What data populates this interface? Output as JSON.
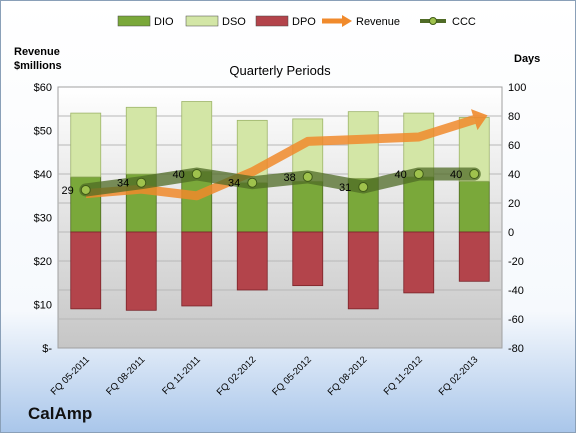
{
  "chart_data": {
    "type": "bar",
    "title": "Quarterly Periods",
    "company": "CalAmp",
    "left_axis_label": [
      "Revenue",
      "$millions"
    ],
    "right_axis_label": "Days",
    "categories": [
      "FQ 05-2011",
      "FQ 08-2011",
      "FQ 11-2011",
      "FQ 02-2012",
      "FQ 05-2012",
      "FQ 08-2012",
      "FQ 11-2012",
      "FQ 02-2013"
    ],
    "left_axis": {
      "min": 0,
      "max": 60,
      "ticks": [
        "$-",
        "$10",
        "$20",
        "$30",
        "$40",
        "$50",
        "$60"
      ]
    },
    "right_axis": {
      "min": -80,
      "max": 100,
      "ticks": [
        "-80",
        "-60",
        "-40",
        "-20",
        "0",
        "20",
        "40",
        "60",
        "80",
        "100"
      ]
    },
    "legend_position": "top",
    "series": [
      {
        "name": "DIO",
        "kind": "bar",
        "axis": "days",
        "color": "#7aa83a",
        "values": [
          38,
          40,
          42,
          34,
          35,
          37,
          38,
          35
        ]
      },
      {
        "name": "DSO",
        "kind": "bar",
        "axis": "days",
        "color": "#d3e6a6",
        "values": [
          44,
          46,
          48,
          43,
          43,
          46,
          44,
          44
        ]
      },
      {
        "name": "DPO",
        "kind": "bar",
        "axis": "days",
        "color": "#b3444b",
        "values": [
          -53,
          -54,
          -51,
          -40,
          -37,
          -53,
          -42,
          -34
        ]
      },
      {
        "name": "Revenue",
        "kind": "arrow",
        "axis": "revenue",
        "color": "#f08a2c",
        "values": [
          35.5,
          36.5,
          35,
          40.5,
          47.5,
          48,
          48.5,
          52.5
        ]
      },
      {
        "name": "CCC",
        "kind": "line",
        "axis": "days",
        "color": "#4f6b26",
        "values": [
          29,
          34,
          40,
          34,
          38,
          31,
          40,
          40
        ]
      }
    ],
    "ccc_labels": [
      "29",
      "34",
      "40",
      "34",
      "38",
      "31",
      "40",
      "40"
    ]
  }
}
